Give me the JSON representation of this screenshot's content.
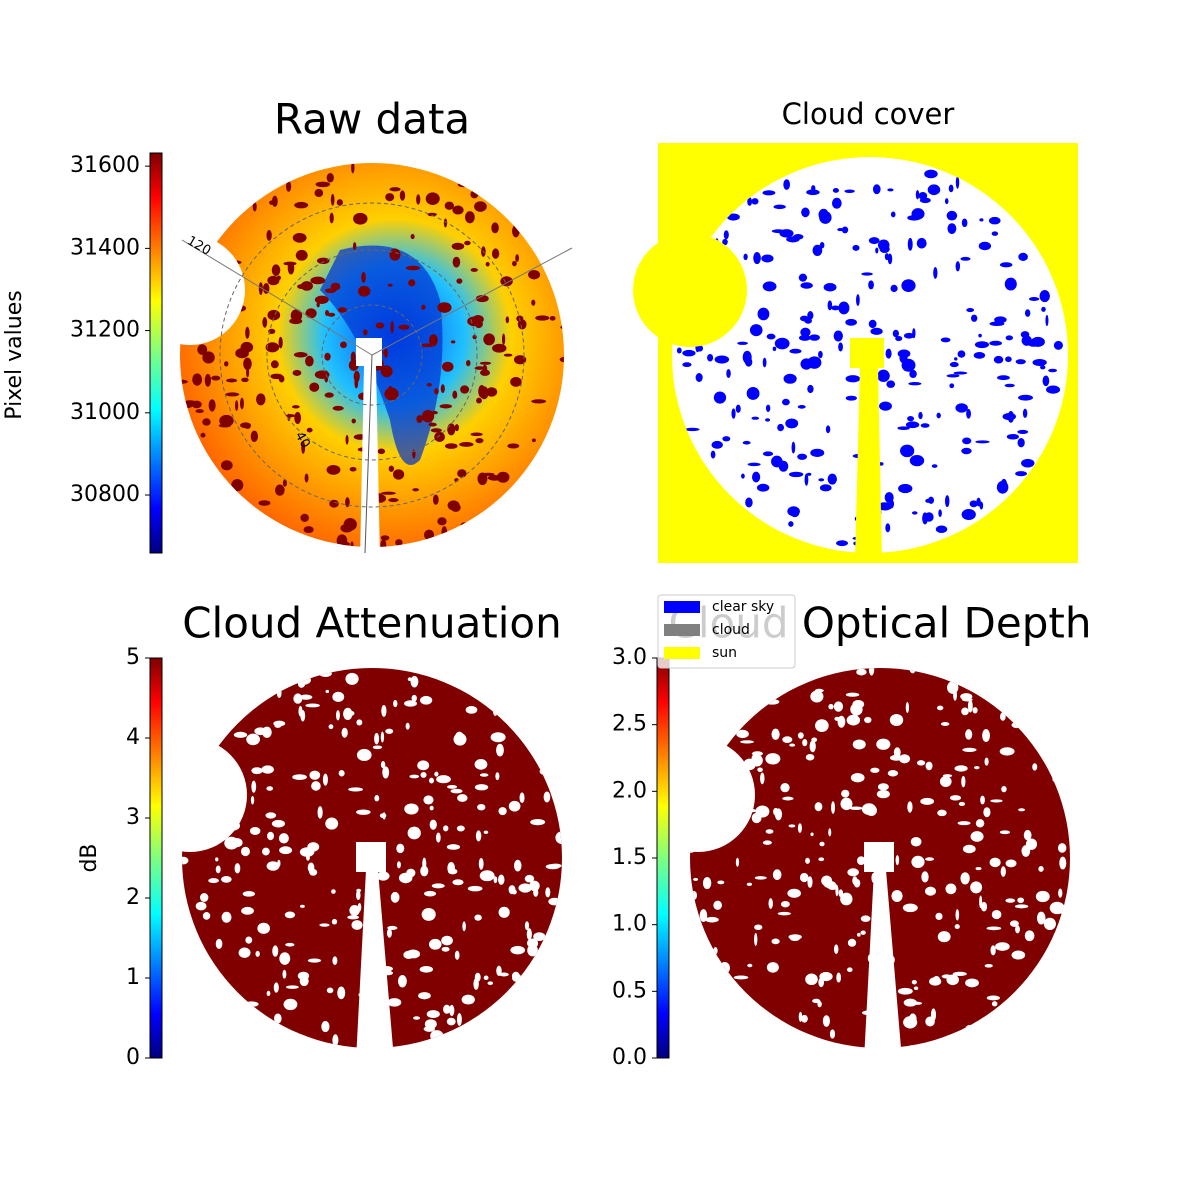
{
  "chart_data": [
    {
      "type": "image",
      "title": "Raw data",
      "polar_labels": [
        "120",
        "40"
      ],
      "colorbar": {
        "label": "Pixel values",
        "colormap": "jet",
        "lim": [
          30659,
          31632
        ],
        "ticks": [
          30800,
          31000,
          31200,
          31400,
          31600
        ]
      }
    },
    {
      "type": "image",
      "title": "Cloud cover",
      "legend": [
        {
          "name": "clear sky",
          "color": "#0000ff"
        },
        {
          "name": "cloud",
          "color": "#808080"
        },
        {
          "name": "sun",
          "color": "#ffff00"
        }
      ]
    },
    {
      "type": "image",
      "title": "Cloud Attenuation",
      "colorbar": {
        "label": "dB",
        "colormap": "jet",
        "lim": [
          0,
          5
        ],
        "ticks": [
          0,
          1,
          2,
          3,
          4,
          5
        ]
      }
    },
    {
      "type": "image",
      "title": "Cloud Optical Depth",
      "colorbar": {
        "colormap": "jet",
        "lim": [
          0,
          3
        ],
        "ticks": [
          {
            "value": 0,
            "label": "0.0"
          },
          0.5,
          {
            "value": 1,
            "label": "1.0"
          },
          1.5,
          {
            "value": 2,
            "label": "2.0"
          },
          2.5,
          {
            "value": 3,
            "label": "3.0"
          }
        ]
      }
    }
  ]
}
